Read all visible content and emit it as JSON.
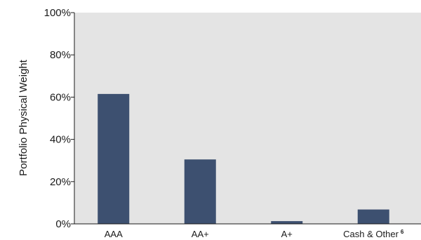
{
  "chart_data": {
    "type": "bar",
    "categories": [
      "AAA",
      "AA+",
      "A+",
      "Cash & Other"
    ],
    "category_superscripts": [
      "",
      "",
      "",
      "6"
    ],
    "values": [
      61.5,
      30.5,
      1.3,
      6.8
    ],
    "ylabel": "Portfolio Physical Weight",
    "xlabel": "",
    "ylim": [
      0,
      100
    ],
    "yticks": [
      "0%",
      "20%",
      "40%",
      "60%",
      "80%",
      "100%"
    ],
    "ytick_values": [
      0,
      20,
      40,
      60,
      80,
      100
    ],
    "bar_color": "#3d5070",
    "plot_background": "#e4e4e4",
    "grid": false,
    "legend": "none"
  }
}
